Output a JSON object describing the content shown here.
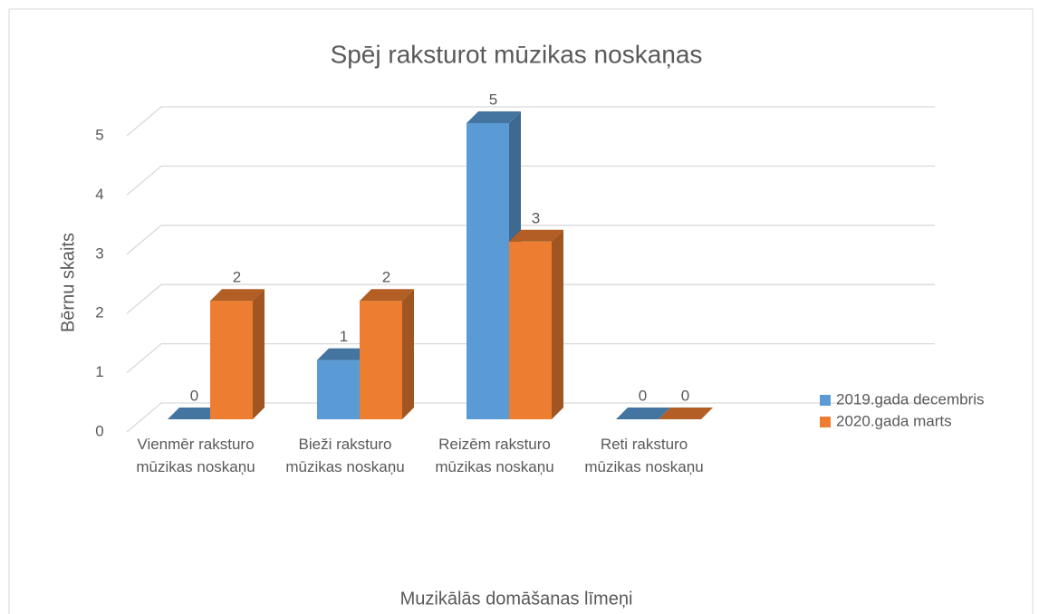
{
  "chart_data": {
    "type": "bar3d",
    "title": "Spēj raksturot mūzikas noskaņas",
    "x_label": "Muzikālās domāšanas līmeņi",
    "y_label": "Bērnu skaits",
    "categories": [
      "Vienmēr raksturo mūzikas noskaņu",
      "Bieži raksturo mūzikas noskaņu",
      "Reizēm raksturo mūzikas noskaņu",
      "Reti raksturo mūzikas noskaņu"
    ],
    "series": [
      {
        "name": "2019.gada decembris",
        "color": "#5b9bd5",
        "values": [
          0,
          1,
          5,
          0
        ]
      },
      {
        "name": "2020.gada marts",
        "color": "#ed7d31",
        "values": [
          2,
          2,
          3,
          0
        ]
      }
    ],
    "ylim": [
      0,
      5
    ],
    "yticks": [
      0,
      1,
      2,
      3,
      4,
      5
    ],
    "grid": true,
    "legend": "right"
  }
}
